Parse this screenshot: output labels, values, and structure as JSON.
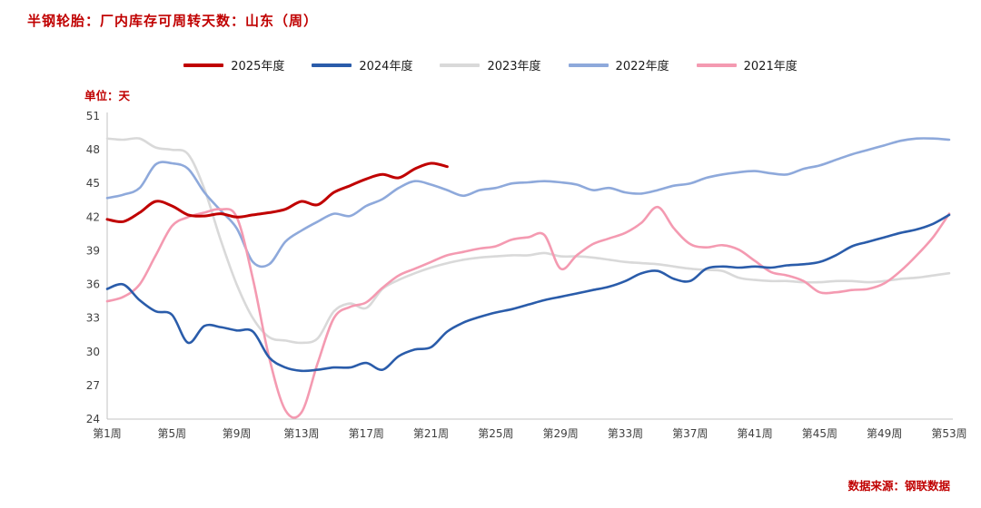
{
  "title": "半钢轮胎：厂内库存可周转天数：山东（周）",
  "unit_label": "单位：天",
  "source": "数据来源：钢联数据",
  "colors": {
    "accent_red": "#c00000",
    "axis_line": "#c3c3c3",
    "tick_text": "#404040"
  },
  "chart_data": {
    "type": "line",
    "title": "半钢轮胎：厂内库存可周转天数：山东（周）",
    "xlabel": "",
    "ylabel": "单位：天",
    "ylim": [
      24,
      51
    ],
    "ytick_step": 3,
    "ytick_labels": [
      "24",
      "27",
      "30",
      "33",
      "36",
      "39",
      "42",
      "45",
      "48",
      "51"
    ],
    "weeks_total": 53,
    "xtick_weeks": [
      1,
      5,
      9,
      13,
      17,
      21,
      25,
      29,
      33,
      37,
      41,
      45,
      49,
      53
    ],
    "xtick_labels": [
      "第1周",
      "第5周",
      "第9周",
      "第13周",
      "第17周",
      "第21周",
      "第25周",
      "第29周",
      "第33周",
      "第37周",
      "第41周",
      "第45周",
      "第49周",
      "第53周"
    ],
    "grid": false,
    "legend_position": "top-center",
    "series": [
      {
        "name": "2025年度",
        "color": "#c00000",
        "width": 3,
        "values": [
          41.8,
          41.6,
          42.4,
          43.4,
          43.0,
          42.2,
          42.1,
          42.3,
          42.0,
          42.2,
          42.4,
          42.7,
          43.4,
          43.1,
          44.2,
          44.8,
          45.4,
          45.8,
          45.5,
          46.3,
          46.8,
          46.5
        ]
      },
      {
        "name": "2024年度",
        "color": "#2a5caa",
        "width": 2.6,
        "values": [
          35.6,
          36.0,
          34.6,
          33.6,
          33.3,
          30.8,
          32.3,
          32.2,
          31.9,
          31.8,
          29.5,
          28.6,
          28.3,
          28.4,
          28.6,
          28.6,
          29.0,
          28.4,
          29.6,
          30.2,
          30.4,
          31.8,
          32.6,
          33.1,
          33.5,
          33.8,
          34.2,
          34.6,
          34.9,
          35.2,
          35.5,
          35.8,
          36.3,
          37.0,
          37.2,
          36.5,
          36.3,
          37.4,
          37.6,
          37.5,
          37.6,
          37.5,
          37.7,
          37.8,
          38.0,
          38.6,
          39.4,
          39.8,
          40.2,
          40.6,
          40.9,
          41.4,
          42.2
        ]
      },
      {
        "name": "2023年度",
        "color": "#d9d9d9",
        "width": 2.6,
        "values": [
          49.0,
          48.9,
          49.0,
          48.2,
          48.0,
          47.6,
          44.5,
          40.0,
          36.0,
          33.0,
          31.3,
          31.0,
          30.8,
          31.2,
          33.6,
          34.3,
          33.9,
          35.6,
          36.4,
          37.0,
          37.5,
          37.9,
          38.2,
          38.4,
          38.5,
          38.6,
          38.6,
          38.8,
          38.5,
          38.5,
          38.4,
          38.2,
          38.0,
          37.9,
          37.8,
          37.6,
          37.4,
          37.3,
          37.2,
          36.6,
          36.4,
          36.3,
          36.3,
          36.2,
          36.2,
          36.3,
          36.3,
          36.2,
          36.3,
          36.5,
          36.6,
          36.8,
          37.0
        ]
      },
      {
        "name": "2022年度",
        "color": "#8ea9db",
        "width": 2.6,
        "values": [
          43.7,
          44.0,
          44.6,
          46.7,
          46.8,
          46.3,
          44.2,
          42.6,
          41.0,
          38.0,
          37.8,
          39.8,
          40.8,
          41.6,
          42.3,
          42.1,
          43.0,
          43.6,
          44.6,
          45.2,
          44.9,
          44.4,
          43.9,
          44.4,
          44.6,
          45.0,
          45.1,
          45.2,
          45.1,
          44.9,
          44.4,
          44.6,
          44.2,
          44.1,
          44.4,
          44.8,
          45.0,
          45.5,
          45.8,
          46.0,
          46.1,
          45.9,
          45.8,
          46.3,
          46.6,
          47.1,
          47.6,
          48.0,
          48.4,
          48.8,
          49.0,
          49.0,
          48.9
        ]
      },
      {
        "name": "2021年度",
        "color": "#f49ab1",
        "width": 2.6,
        "values": [
          34.5,
          34.9,
          36.0,
          38.6,
          41.2,
          42.0,
          42.4,
          42.7,
          42.0,
          36.5,
          29.5,
          24.8,
          24.6,
          29.0,
          33.0,
          34.0,
          34.4,
          35.7,
          36.8,
          37.4,
          38.0,
          38.6,
          38.9,
          39.2,
          39.4,
          40.0,
          40.2,
          40.4,
          37.4,
          38.6,
          39.6,
          40.1,
          40.6,
          41.5,
          42.9,
          41.0,
          39.6,
          39.3,
          39.5,
          39.1,
          38.1,
          37.1,
          36.8,
          36.3,
          35.3,
          35.3,
          35.5,
          35.6,
          36.1,
          37.2,
          38.6,
          40.2,
          42.3
        ]
      }
    ]
  }
}
